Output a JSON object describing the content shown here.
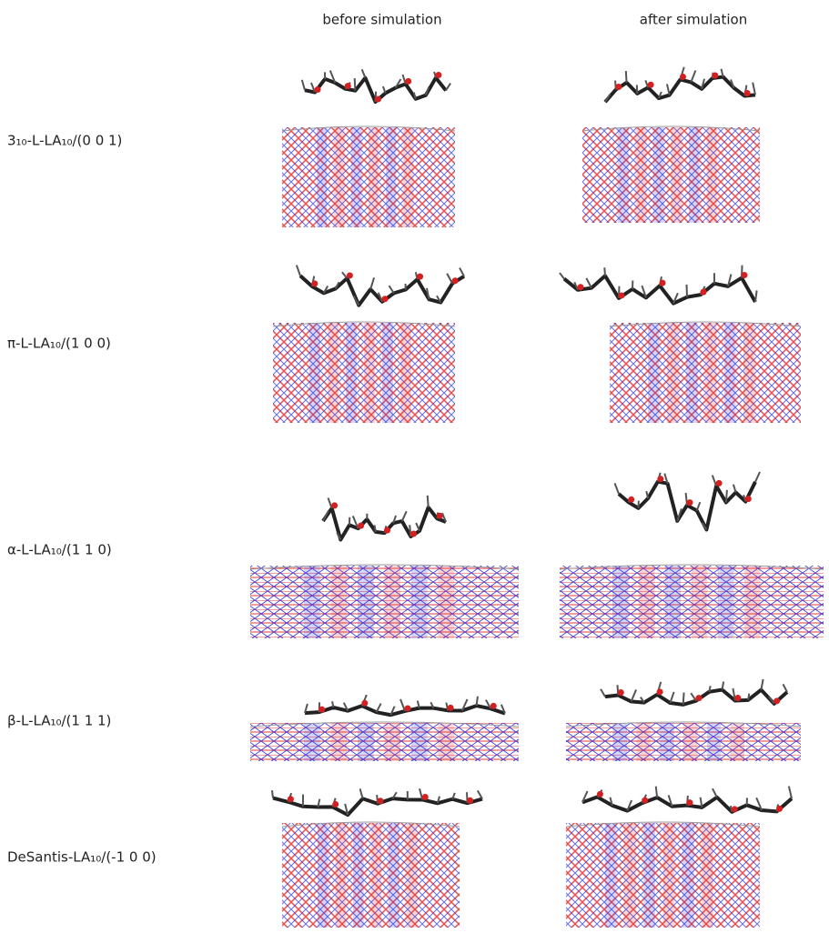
{
  "columns": [
    "before simulation",
    "after simulation"
  ],
  "rows": [
    {
      "label": "3₁₀-L-LA₁₀/(0 0 1)"
    },
    {
      "label": "π-L-LA₁₀/(1 0 0)"
    },
    {
      "label": "α-L-LA₁₀/(1 1 0)"
    },
    {
      "label": "β-L-LA₁₀/(1 1 1)"
    },
    {
      "label": "DeSantis-LA₁₀/(-1 0 0)"
    }
  ]
}
